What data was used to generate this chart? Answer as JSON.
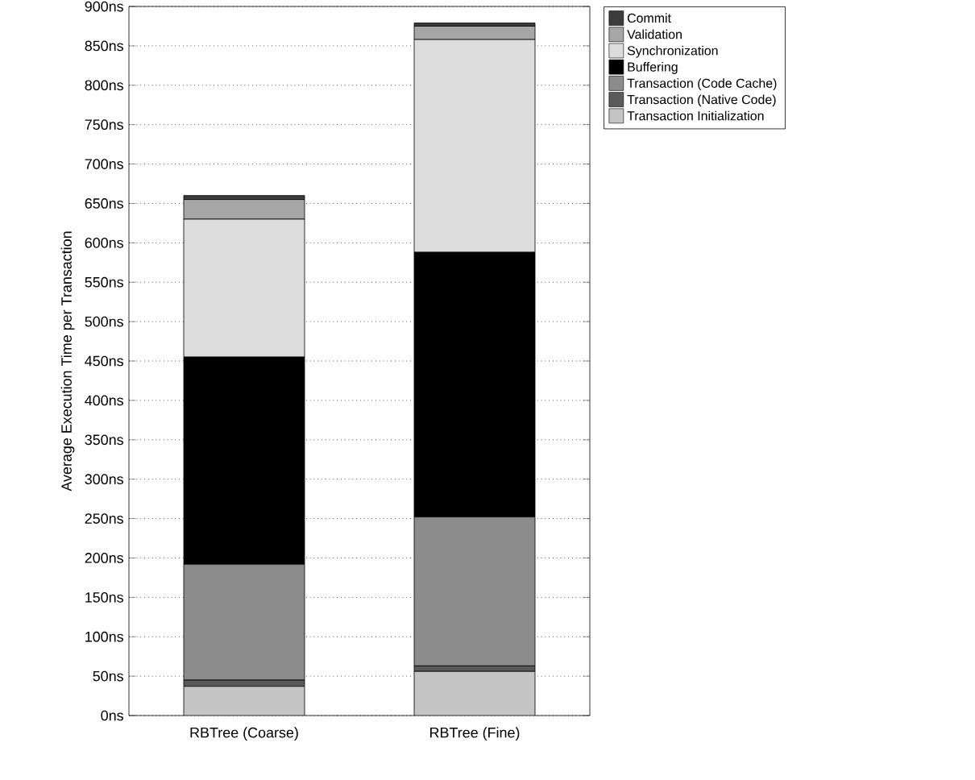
{
  "chart_data": {
    "type": "bar",
    "stacked": true,
    "ylabel": "Average Execution Time per Transaction",
    "categories": [
      "RBTree (Coarse)",
      "RBTree (Fine)"
    ],
    "series": [
      {
        "name": "Transaction Initialization",
        "color": "#c4c4c4",
        "values": [
          37,
          56
        ]
      },
      {
        "name": "Transaction (Native Code)",
        "color": "#5a5a5a",
        "values": [
          8,
          7
        ]
      },
      {
        "name": "Transaction (Code Cache)",
        "color": "#8c8c8c",
        "values": [
          147,
          189
        ]
      },
      {
        "name": "Buffering",
        "color": "#000000",
        "values": [
          263,
          336
        ]
      },
      {
        "name": "Synchronization",
        "color": "#dcdcdc",
        "values": [
          175,
          270
        ]
      },
      {
        "name": "Validation",
        "color": "#a6a6a6",
        "values": [
          25,
          17
        ]
      },
      {
        "name": "Commit",
        "color": "#3c3c3c",
        "values": [
          5,
          4
        ]
      }
    ],
    "ylim": [
      0,
      900
    ],
    "yticks": [
      {
        "value": 0,
        "label": "0ns"
      },
      {
        "value": 50,
        "label": "50ns"
      },
      {
        "value": 100,
        "label": "100ns"
      },
      {
        "value": 150,
        "label": "150ns"
      },
      {
        "value": 200,
        "label": "200ns"
      },
      {
        "value": 250,
        "label": "250ns"
      },
      {
        "value": 300,
        "label": "300ns"
      },
      {
        "value": 350,
        "label": "350ns"
      },
      {
        "value": 400,
        "label": "400ns"
      },
      {
        "value": 450,
        "label": "450ns"
      },
      {
        "value": 500,
        "label": "500ns"
      },
      {
        "value": 550,
        "label": "550ns"
      },
      {
        "value": 600,
        "label": "600ns"
      },
      {
        "value": 650,
        "label": "650ns"
      },
      {
        "value": 700,
        "label": "700ns"
      },
      {
        "value": 750,
        "label": "750ns"
      },
      {
        "value": 800,
        "label": "800ns"
      },
      {
        "value": 850,
        "label": "850ns"
      },
      {
        "value": 900,
        "label": "900ns"
      }
    ],
    "grid": "y",
    "legend": "top right"
  }
}
